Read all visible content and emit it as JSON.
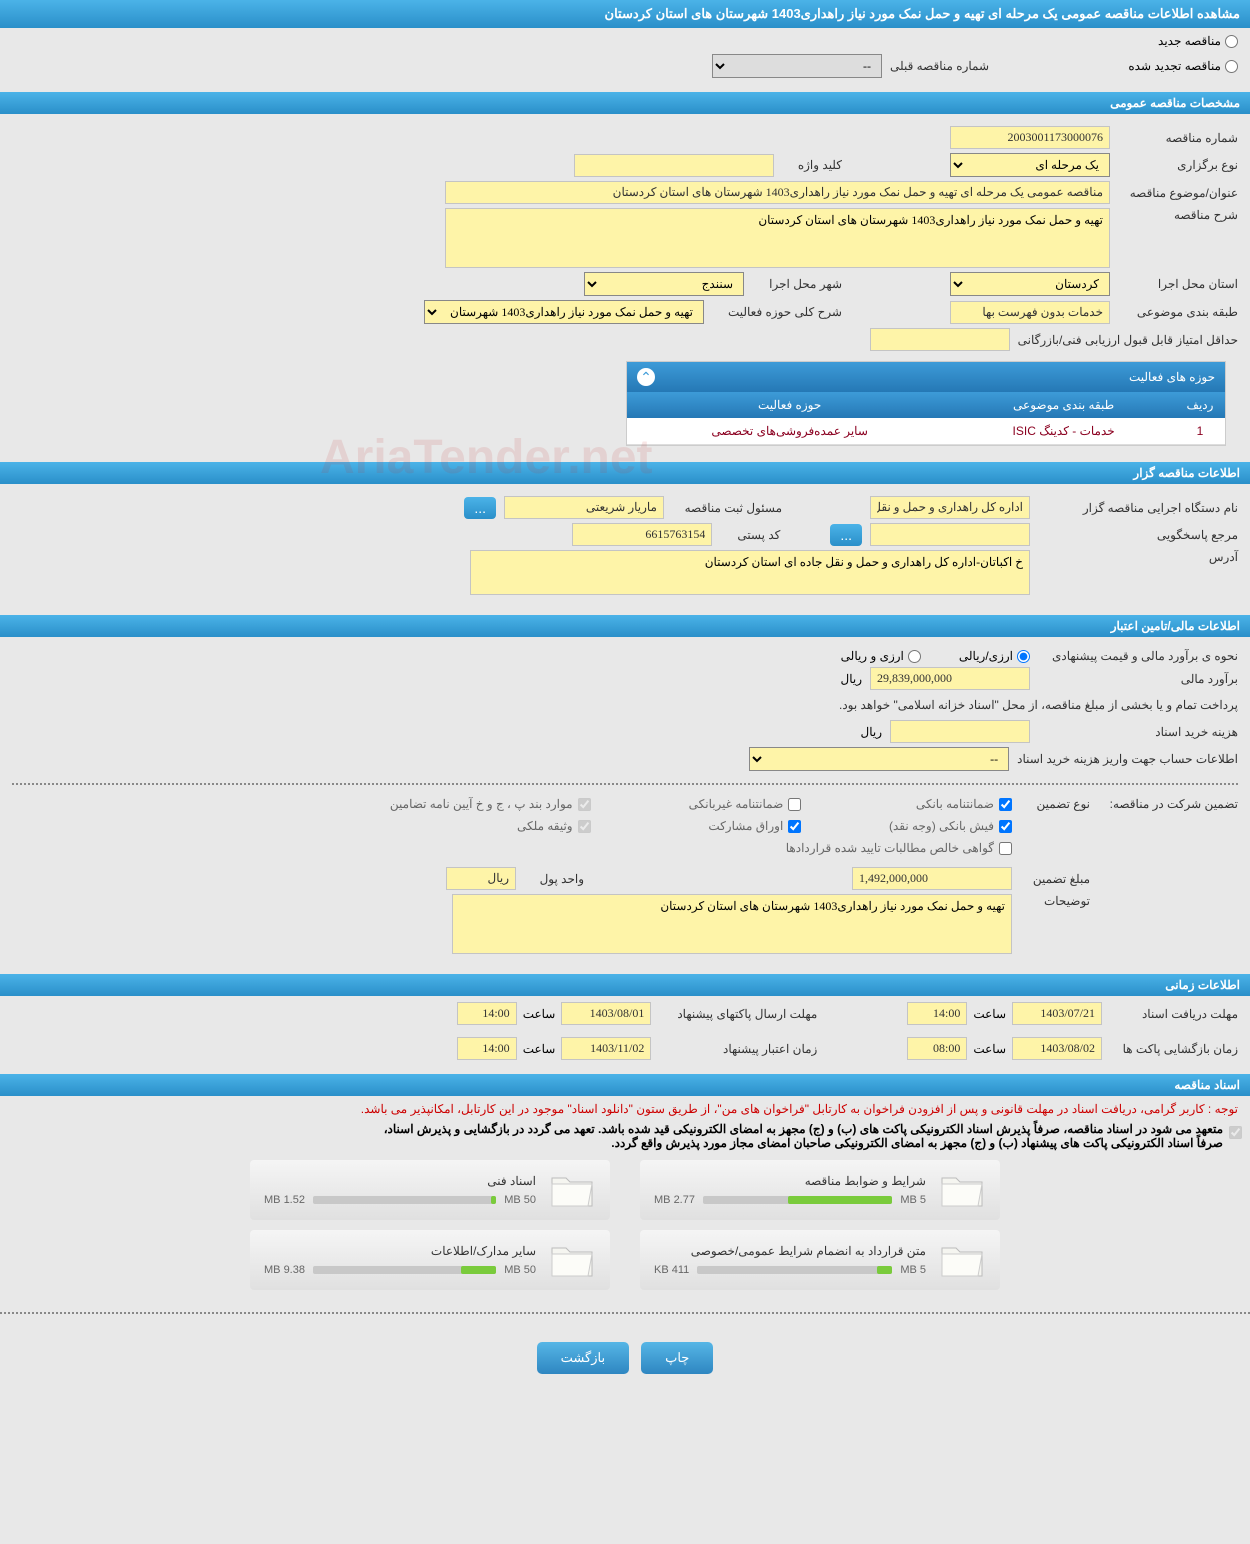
{
  "page_title": "مشاهده اطلاعات مناقصه عمومی یک مرحله ای تهیه و حمل نمک مورد نیاز راهداری1403 شهرستان های استان کردستان",
  "radio_new": "مناقصه جدید",
  "radio_renew": "مناقصه تجدید شده",
  "prev_number_label": "شماره مناقصه قبلی",
  "prev_number_value": "--",
  "section_general": "مشخصات مناقصه عمومی",
  "tender_number_label": "شماره مناقصه",
  "tender_number": "2003001173000076",
  "type_label": "نوع برگزاری",
  "type_value": "یک مرحله ای",
  "keyword_label": "کلید واژه",
  "keyword_value": "",
  "subject_label": "عنوان/موضوع مناقصه",
  "subject_value": "مناقصه عمومی یک مرحله ای تهیه و حمل نمک مورد نیاز راهداری1403 شهرستان های استان کردستان",
  "desc_label": "شرح مناقصه",
  "desc_value": "تهیه و حمل نمک مورد نیاز راهداری1403 شهرستان های استان کردستان",
  "province_label": "استان محل اجرا",
  "province_value": "کردستان",
  "city_label": "شهر محل اجرا",
  "city_value": "سنندج",
  "category_label": "طبقه بندی موضوعی",
  "category_value": "خدمات بدون فهرست بها",
  "scope_label": "شرح کلی حوزه فعالیت",
  "scope_value": "تهیه و حمل نمک مورد نیاز راهداری1403 شهرستان",
  "min_score_label": "حداقل امتیاز قابل قبول ارزیابی فنی/بازرگانی",
  "min_score_value": "",
  "activity_header": "حوزه های فعالیت",
  "activity_cols": {
    "row": "ردیف",
    "cat": "طبقه بندی موضوعی",
    "area": "حوزه فعالیت"
  },
  "activity_row": {
    "num": "1",
    "cat": "خدمات - کدینگ ISIC",
    "area": "سایر عمده‌فروشی‌های تخصصی"
  },
  "section_owner": "اطلاعات مناقصه گزار",
  "org_label": "نام دستگاه اجرایی مناقصه گزار",
  "org_value": "اداره کل راهداری و حمل و نقل",
  "registrar_label": "مسئول ثبت مناقصه",
  "registrar_value": "ماریار شریعتی",
  "responder_label": "مرجع پاسخگویی",
  "responder_value": "",
  "postal_label": "کد پستی",
  "postal_value": "6615763154",
  "address_label": "آدرس",
  "address_value": "خ اکباتان-اداره کل راهداری و حمل و نقل جاده ای استان کردستان",
  "section_finance": "اطلاعات مالی/تامین اعتبار",
  "estimate_mode_label": "نحوه ی برآورد مالی و قیمت پیشنهادی",
  "estimate_rial": "ارزی/ریالی",
  "estimate_arz": "ارزی و ریالی",
  "estimate_label": "برآورد مالی",
  "estimate_value": "29,839,000,000",
  "rial": "ریال",
  "payment_note": "پرداخت تمام و یا بخشی از مبلغ مناقصه، از محل \"اسناد خزانه اسلامی\" خواهد بود.",
  "doc_cost_label": "هزینه خرید اسناد",
  "doc_cost_value": "",
  "account_label": "اطلاعات حساب جهت واریز هزینه خرید اسناد",
  "account_value": "--",
  "guarantee_label": "تضمین شرکت در مناقصه:",
  "guarantee_type_label": "نوع تضمین",
  "cb_bank": "ضمانتنامه بانکی",
  "cb_nonbank": "ضمانتنامه غیربانکی",
  "cb_bpjkh": "موارد بند پ ، ج و خ آیین نامه تضامین",
  "cb_cash": "فیش بانکی (وجه نقد)",
  "cb_share": "اوراق مشارکت",
  "cb_deed": "وثیقه ملکی",
  "cb_cert": "گواهی خالص مطالبات تایید شده قراردادها",
  "guarantee_amount_label": "مبلغ تضمین",
  "guarantee_amount": "1,492,000,000",
  "unit_label": "واحد پول",
  "unit_value": "ریال",
  "notes_label": "توضیحات",
  "notes_value": "تهیه و حمل نمک مورد نیاز راهداری1403 شهرستان های استان کردستان",
  "section_time": "اطلاعات زمانی",
  "deadline_doc_label": "مهلت دریافت اسناد",
  "deadline_doc_date": "1403/07/21",
  "deadline_doc_time": "14:00",
  "deadline_env_label": "مهلت ارسال پاکتهای پیشنهاد",
  "deadline_env_date": "1403/08/01",
  "deadline_env_time": "14:00",
  "open_label": "زمان بازگشایی پاکت ها",
  "open_date": "1403/08/02",
  "open_time": "08:00",
  "validity_label": "زمان اعتبار پیشنهاد",
  "validity_date": "1403/11/02",
  "validity_time": "14:00",
  "time_word": "ساعت",
  "section_docs": "اسناد مناقصه",
  "notice_red": "توجه : کاربر گرامی، دریافت اسناد در مهلت قانونی و پس از افزودن فراخوان به کارتابل \"فراخوان های من\"، از طریق ستون \"دانلود اسناد\" موجود در این کارتابل، امکانپذیر می باشد.",
  "notice_b1": "متعهد می شود در اسناد مناقصه، صرفاً پذیرش اسناد الکترونیکی پاکت های (ب) و (ج) مجهز به امضای الکترونیکی قید شده باشد. تعهد می گردد در بازگشایی و پذیرش اسناد،",
  "notice_b2": "صرفاً اسناد الکترونیکی پاکت های پیشنهاد (ب) و (ج) مجهز به امضای الکترونیکی صاحبان امضای مجاز مورد پذیرش واقع گردد.",
  "doc1": {
    "title": "شرایط و ضوابط مناقصه",
    "max": "5 MB",
    "used": "2.77 MB",
    "pct": 55
  },
  "doc2": {
    "title": "اسناد فنی",
    "max": "50 MB",
    "used": "1.52 MB",
    "pct": 3
  },
  "doc3": {
    "title": "متن قرارداد به انضمام شرایط عمومی/خصوصی",
    "max": "5 MB",
    "used": "411 KB",
    "pct": 8
  },
  "doc4": {
    "title": "سایر مدارک/اطلاعات",
    "max": "50 MB",
    "used": "9.38 MB",
    "pct": 19
  },
  "btn_print": "چاپ",
  "btn_back": "بازگشت",
  "watermark": "AriaTender.net"
}
